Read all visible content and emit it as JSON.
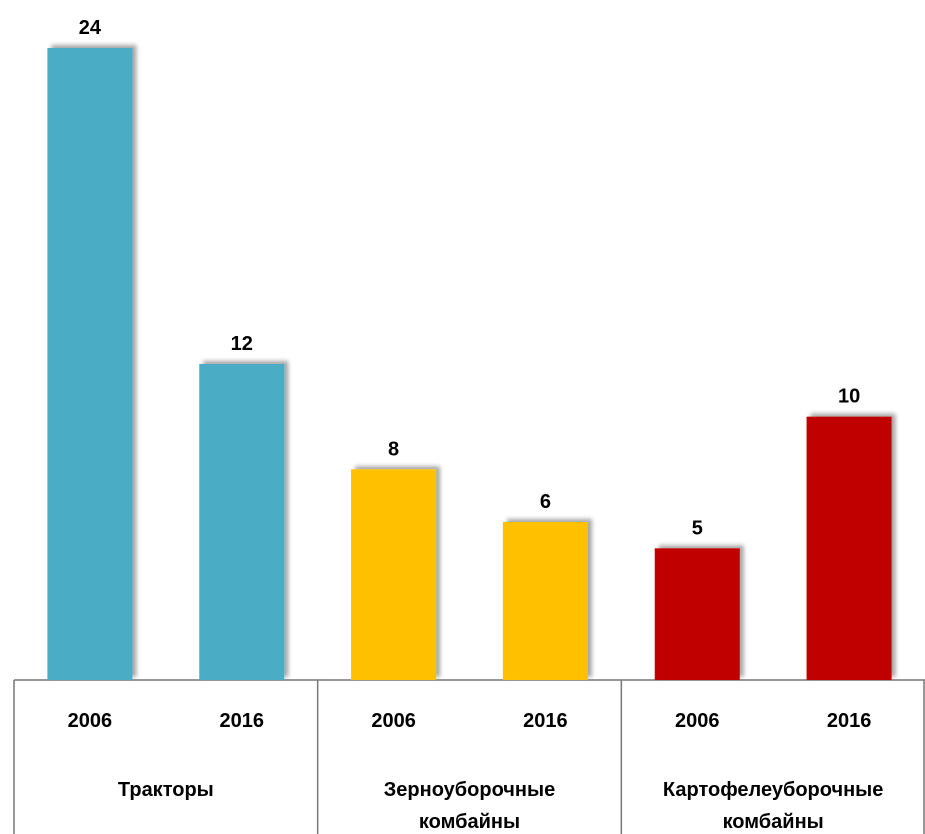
{
  "chart_data": {
    "type": "bar",
    "ylim": [
      0,
      24
    ],
    "groups": [
      {
        "name": "Тракторы",
        "color": "#4bacc6",
        "categories": [
          "2006",
          "2016"
        ],
        "values": [
          24,
          12
        ]
      },
      {
        "name": "Зерноуборочные комбайны",
        "color": "#ffc000",
        "categories": [
          "2006",
          "2016"
        ],
        "values": [
          8,
          6
        ]
      },
      {
        "name": "Картофелеуборочные комбайны",
        "color": "#c00000",
        "categories": [
          "2006",
          "2016"
        ],
        "values": [
          5,
          10
        ]
      }
    ]
  }
}
